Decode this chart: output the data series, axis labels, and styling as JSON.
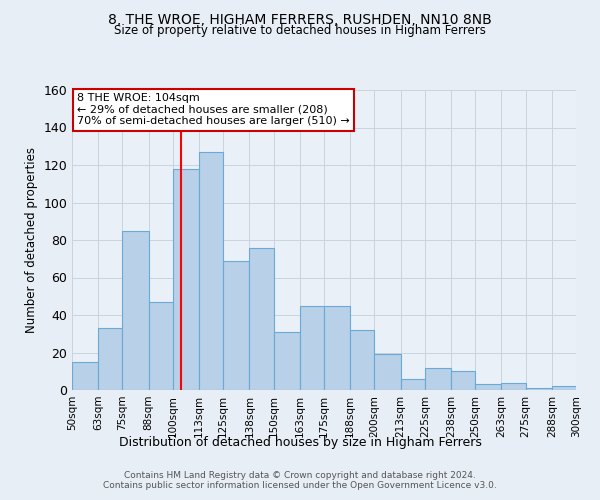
{
  "title": "8, THE WROE, HIGHAM FERRERS, RUSHDEN, NN10 8NB",
  "subtitle": "Size of property relative to detached houses in Higham Ferrers",
  "xlabel": "Distribution of detached houses by size in Higham Ferrers",
  "ylabel": "Number of detached properties",
  "bin_edges": [
    50,
    63,
    75,
    88,
    100,
    113,
    125,
    138,
    150,
    163,
    175,
    188,
    200,
    213,
    225,
    238,
    250,
    263,
    275,
    288,
    300
  ],
  "bin_labels": [
    "50sqm",
    "63sqm",
    "75sqm",
    "88sqm",
    "100sqm",
    "113sqm",
    "125sqm",
    "138sqm",
    "150sqm",
    "163sqm",
    "175sqm",
    "188sqm",
    "200sqm",
    "213sqm",
    "225sqm",
    "238sqm",
    "250sqm",
    "263sqm",
    "275sqm",
    "288sqm",
    "300sqm"
  ],
  "counts": [
    15,
    33,
    85,
    47,
    118,
    127,
    69,
    76,
    31,
    45,
    45,
    32,
    19,
    6,
    12,
    10,
    3,
    4,
    1,
    2,
    0
  ],
  "bar_color": "#b8d0e8",
  "bar_edge_color": "#6aaad4",
  "red_line_x": 104,
  "ylim": [
    0,
    160
  ],
  "yticks": [
    0,
    20,
    40,
    60,
    80,
    100,
    120,
    140,
    160
  ],
  "annotation_title": "8 THE WROE: 104sqm",
  "annotation_line1": "← 29% of detached houses are smaller (208)",
  "annotation_line2": "70% of semi-detached houses are larger (510) →",
  "annotation_box_color": "#ffffff",
  "annotation_box_edge": "#cc0000",
  "footer_line1": "Contains HM Land Registry data © Crown copyright and database right 2024.",
  "footer_line2": "Contains public sector information licensed under the Open Government Licence v3.0.",
  "background_color": "#e8eef5",
  "plot_bg_color": "#eaf0f8",
  "grid_color": "#c8d4de"
}
